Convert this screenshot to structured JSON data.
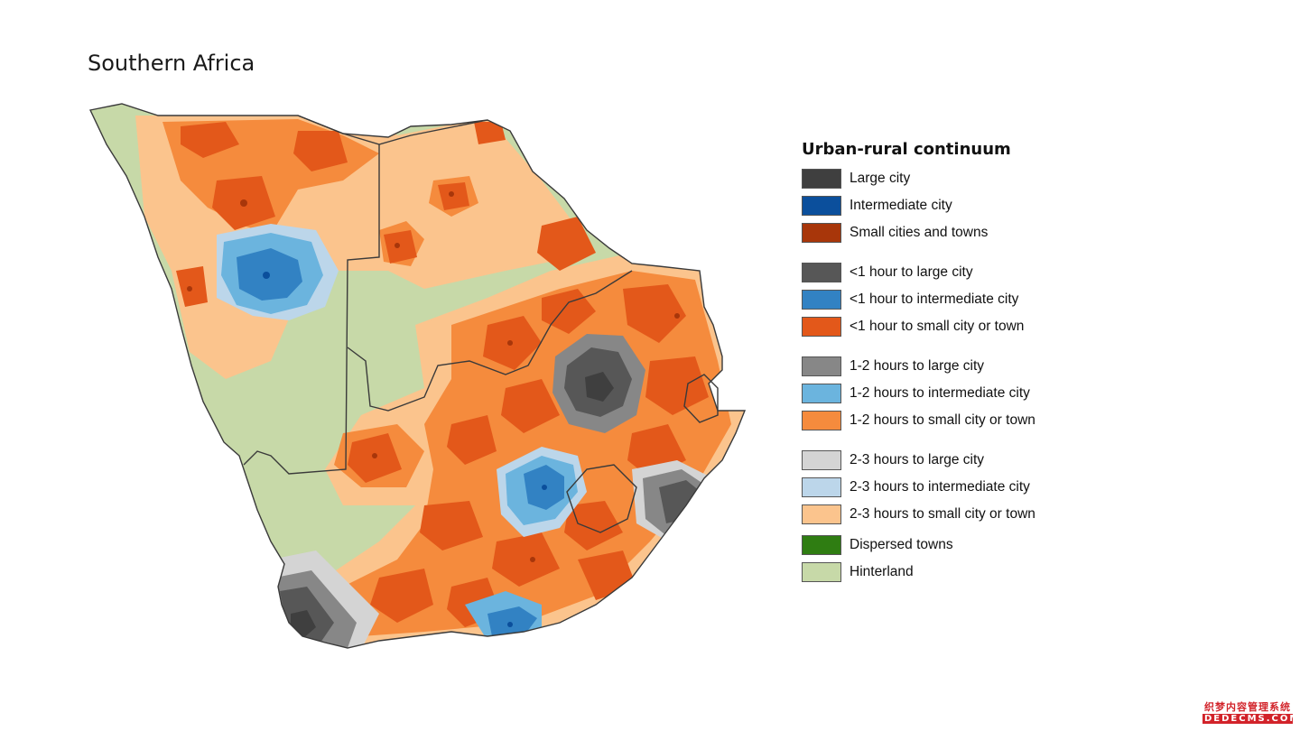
{
  "title": "Southern Africa",
  "legend": {
    "title": "Urban-rural continuum",
    "groups": [
      [
        {
          "label": "Large city",
          "color": "#3f3f3f"
        },
        {
          "label": "Intermediate city",
          "color": "#0b4f9c"
        },
        {
          "label": "Small cities and towns",
          "color": "#a8360a"
        }
      ],
      [
        {
          "label": "<1 hour to large city",
          "color": "#575757"
        },
        {
          "label": "<1 hour to intermediate city",
          "color": "#3282c3"
        },
        {
          "label": "<1 hour to small city or town",
          "color": "#e3581a"
        }
      ],
      [
        {
          "label": "1-2 hours to large city",
          "color": "#878787"
        },
        {
          "label": "1-2 hours to intermediate city",
          "color": "#6bb4de"
        },
        {
          "label": "1-2 hours to small city or town",
          "color": "#f58b3d"
        }
      ],
      [
        {
          "label": "2-3 hours to large city",
          "color": "#d4d4d4"
        },
        {
          "label": "2-3 hours to intermediate city",
          "color": "#bcd6ea"
        },
        {
          "label": "2-3 hours to small city or town",
          "color": "#fbc48d"
        }
      ],
      [
        {
          "label": "Dispersed towns",
          "color": "#2f7d12"
        },
        {
          "label": "Hinterland",
          "color": "#c7d9a8"
        }
      ]
    ]
  },
  "watermark": {
    "line1": "织梦内容管理系统",
    "line2": "DEDECMS.COM"
  }
}
